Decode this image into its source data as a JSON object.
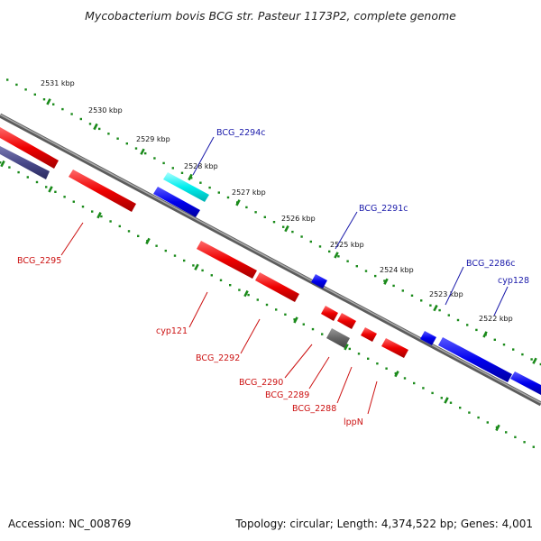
{
  "title": "Mycobacterium bovis BCG str. Pasteur 1173P2, complete genome",
  "footer": {
    "accession": "Accession: NC_008769",
    "summary": "Topology: circular; Length: 4,374,522 bp; Genes: 4,001"
  },
  "colors": {
    "forward_gene": "#0000ee",
    "reverse_gene": "#ee0000",
    "highlight_gene": "#00eeee",
    "rna_gene": "#666666",
    "other_gene": "#4a4a8a",
    "backbone": "#888888",
    "tick": "#1a8a1a",
    "forward_label": "#1a1aaa",
    "reverse_label": "#cc1111"
  },
  "scale_ticks": [
    "2531 kbp",
    "2530 kbp",
    "2529 kbp",
    "2528 kbp",
    "2527 kbp",
    "2526 kbp",
    "2525 kbp",
    "2524 kbp",
    "2523 kbp",
    "2522 kbp"
  ],
  "forward_labels": [
    "BCG_2294c",
    "BCG_2291c",
    "BCG_2286c",
    "cyp128"
  ],
  "reverse_labels": [
    "BCG_2295",
    "cyp121",
    "BCG_2292",
    "BCG_2290",
    "BCG_2289",
    "BCG_2288",
    "lppN"
  ]
}
